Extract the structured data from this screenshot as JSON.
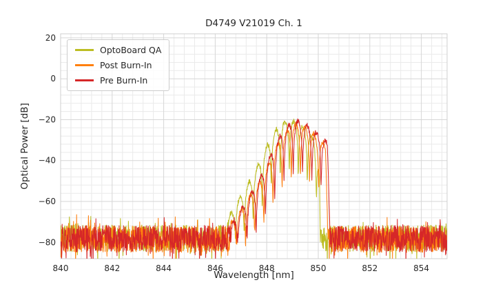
{
  "figure": {
    "background": "#ffffff",
    "grid_major_color": "#d6d6d6",
    "grid_minor_color": "#eaeaea",
    "border_color": "#cfcfcf",
    "text_color": "#262626"
  },
  "chart_data": {
    "type": "line",
    "title": "D4749 V21019 Ch. 1",
    "xlabel": "Wavelength [nm]",
    "ylabel": "Optical Power [dB]",
    "xlim": [
      840,
      855
    ],
    "ylim": [
      -88,
      22
    ],
    "xticks": [
      840,
      842,
      844,
      846,
      848,
      850,
      852,
      854
    ],
    "yticks": [
      20,
      0,
      -20,
      -40,
      -60,
      -80
    ],
    "xminor": 0.4,
    "yminor": 4,
    "grid": true,
    "legend_position": "upper-left",
    "noise_floor_db": -78,
    "signal_band_nm": [
      846.4,
      850.45
    ],
    "peak_power_db": -20,
    "peak_wavelength_nm": 848.9,
    "fringe_period_nm": 0.35,
    "series": [
      {
        "name": "OptoBoard QA",
        "color": "#bcbd22",
        "seed": 7,
        "noise_floor": -78.0,
        "noise_spread": 6.5,
        "fringe_period": 0.35,
        "fringe_phase": 846.95,
        "fringe_visibility": 0.995,
        "envelope": [
          [
            840,
            -200
          ],
          [
            846.2,
            -200
          ],
          [
            846.45,
            -70
          ],
          [
            846.8,
            -61
          ],
          [
            847.15,
            -54
          ],
          [
            847.5,
            -46
          ],
          [
            847.85,
            -37
          ],
          [
            848.2,
            -27
          ],
          [
            848.55,
            -22
          ],
          [
            848.9,
            -20
          ],
          [
            849.25,
            -22
          ],
          [
            849.6,
            -25
          ],
          [
            849.9,
            -31
          ],
          [
            850.05,
            -46
          ],
          [
            850.18,
            -200
          ],
          [
            855,
            -200
          ]
        ]
      },
      {
        "name": "Post Burn-In",
        "color": "#ff7f0e",
        "seed": 13,
        "noise_floor": -78.5,
        "noise_spread": 6.5,
        "fringe_period": 0.355,
        "fringe_phase": 847.0,
        "fringe_visibility": 0.995,
        "envelope": [
          [
            840,
            -200
          ],
          [
            846.35,
            -200
          ],
          [
            846.6,
            -72
          ],
          [
            847.0,
            -64
          ],
          [
            847.4,
            -56
          ],
          [
            847.8,
            -49
          ],
          [
            848.15,
            -39
          ],
          [
            848.5,
            -30
          ],
          [
            848.85,
            -24
          ],
          [
            849.15,
            -22
          ],
          [
            849.45,
            -23
          ],
          [
            849.75,
            -26
          ],
          [
            850.0,
            -29
          ],
          [
            850.28,
            -32
          ],
          [
            850.42,
            -75
          ],
          [
            850.5,
            -200
          ],
          [
            855,
            -200
          ]
        ]
      },
      {
        "name": "Pre Burn-In",
        "color": "#d62728",
        "seed": 29,
        "noise_floor": -78.2,
        "noise_spread": 6.5,
        "fringe_period": 0.36,
        "fringe_phase": 847.05,
        "fringe_visibility": 0.995,
        "envelope": [
          [
            840,
            -200
          ],
          [
            846.4,
            -200
          ],
          [
            846.65,
            -72
          ],
          [
            847.05,
            -63
          ],
          [
            847.45,
            -55
          ],
          [
            847.85,
            -46
          ],
          [
            848.2,
            -36
          ],
          [
            848.55,
            -27
          ],
          [
            848.9,
            -22
          ],
          [
            849.2,
            -20.5
          ],
          [
            849.5,
            -22
          ],
          [
            849.8,
            -25
          ],
          [
            850.1,
            -28
          ],
          [
            850.35,
            -31
          ],
          [
            850.48,
            -72
          ],
          [
            850.55,
            -200
          ],
          [
            855,
            -200
          ]
        ]
      }
    ]
  }
}
